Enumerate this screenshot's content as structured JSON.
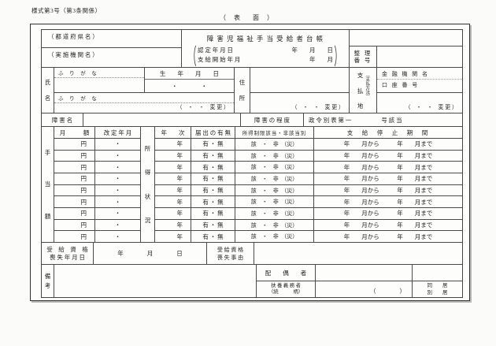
{
  "page": {
    "form_number": "様式第3号（第3条関係）",
    "side_label": "（ 表　面 ）"
  },
  "header": {
    "prefecture_label": "（ 都 道 府 県 名 ）",
    "agency_label": "（ 実 施 機 関 名 ）",
    "title": "障 害 児 福 祉 手 当 受 給 者 台 帳",
    "certify_label": "認 定 年 月 日",
    "certify_value": "年　　月　　日",
    "start_label": "支 給 開 始 年 月",
    "start_value": "年　　月",
    "ref_label_line1": "整 理",
    "ref_label_line2": "番 号"
  },
  "name_section": {
    "shi": "氏",
    "mei": "名",
    "furigana_label": "ふ り が な",
    "birth_header": "生　　年　　月　　日",
    "birth_dots": "・　　　　・",
    "change_note": "（　・　・　変 更 ）",
    "address_top": "住",
    "address_bottom": "所",
    "pay_char1": "支",
    "pay_char2": "払",
    "pay_char3": "地",
    "pay_method": "（支払方法）",
    "bank_label": "金 融 機 関 名",
    "account_label": "口 座 番 号"
  },
  "disability": {
    "name_label": "障 害 名",
    "degree_label": "障 害 の 程 度",
    "schedule_text": "政 令 別 表 第 一",
    "item_text": "号 該 当"
  },
  "allowance": {
    "left_label": [
      "手",
      "当",
      "額"
    ],
    "income_label": [
      "所",
      "得",
      "状",
      "況"
    ],
    "headers": {
      "amount": "月　　　額",
      "revision": "改 定 年 月",
      "year": "年　　次",
      "report": "届 出 の 有 無",
      "limit": "所得制限該当・非該当別",
      "suspension": "支　給　停　止　期　間"
    },
    "rows": [
      {
        "amount": "円",
        "revision": "・",
        "year": "年",
        "report": "有 ・ 無",
        "limit": "該　・　非　（災）",
        "suspension": "年　　月から　　　年　　月まで"
      },
      {
        "amount": "円",
        "revision": "・",
        "year": "年",
        "report": "有 ・ 無",
        "limit": "該　・　非　（災）",
        "suspension": "年　　月から　　　年　　月まで"
      },
      {
        "amount": "円",
        "revision": "・",
        "year": "年",
        "report": "有 ・ 無",
        "limit": "該　・　非　（災）",
        "suspension": "年　　月から　　　年　　月まで"
      },
      {
        "amount": "円",
        "revision": "・",
        "year": "年",
        "report": "有 ・ 無",
        "limit": "該　・　非　（災）",
        "suspension": "年　　月から　　　年　　月まで"
      },
      {
        "amount": "円",
        "revision": "・",
        "year": "年",
        "report": "有 ・ 無",
        "limit": "該　・　非　（災）",
        "suspension": "年　　月から　　　年　　月まで"
      },
      {
        "amount": "円",
        "revision": "・",
        "year": "年",
        "report": "有 ・ 無",
        "limit": "該　・　非　（災）",
        "suspension": "年　　月から　　　年　　月まで"
      },
      {
        "amount": "円",
        "revision": "・",
        "year": "年",
        "report": "有 ・ 無",
        "limit": "該　・　非　（災）",
        "suspension": "年　　月から　　　年　　月まで"
      },
      {
        "amount": "円",
        "revision": "・",
        "year": "年",
        "report": "有 ・ 無",
        "limit": "該　・　非　（災）",
        "suspension": "年　　月から　　　年　　月まで"
      },
      {
        "amount": "円",
        "revision": "・",
        "year": "年",
        "report": "有 ・ 無",
        "limit": "該　・　非　（災）",
        "suspension": "年　　月から　　　年　　月まで"
      }
    ]
  },
  "loss": {
    "date_label_line1": "受　給　資　格",
    "date_label_line2": "喪 失 年 月 日",
    "date_value": "年　　　　月　　　　日",
    "reason_label_line1": "受 給 資 格",
    "reason_label_line2": "喪 失 事 由"
  },
  "notes": {
    "label_top": "備",
    "label_bottom": "考",
    "spouse_label": "配　　偶　　者",
    "dependent_line1": "扶 養 義 務 者",
    "dependent_line2": "（続　　　柄）",
    "paren": "（　　　　）",
    "live_together": "同　　居",
    "live_separate": "別　　居"
  }
}
